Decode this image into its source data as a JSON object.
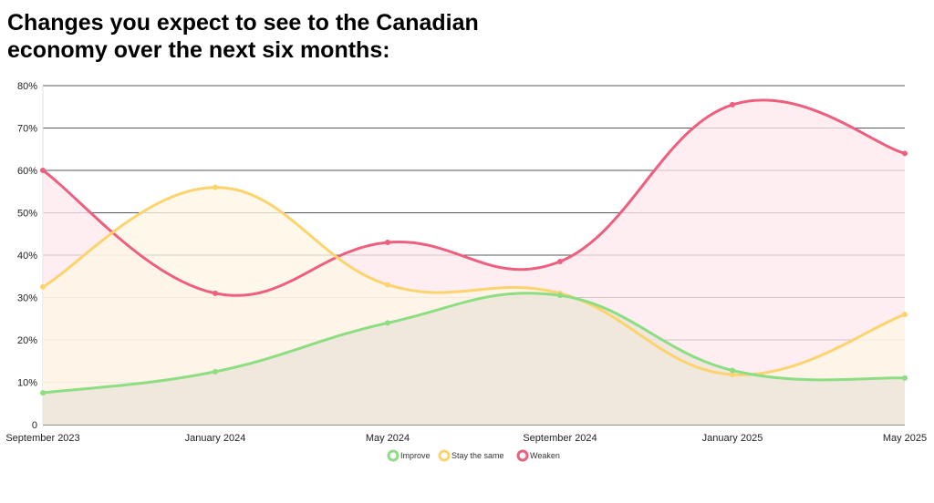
{
  "chart_data": {
    "type": "area",
    "title": "Changes you expect to see to the Canadian economy over the next six months:",
    "x": [
      "September 2023",
      "January 2024",
      "May 2024",
      "September 2024",
      "January 2025",
      "May 2025"
    ],
    "y_ticks": [
      "0",
      "10%",
      "20%",
      "30%",
      "40%",
      "50%",
      "60%",
      "70%",
      "80%"
    ],
    "ylim": [
      0,
      80
    ],
    "grid": true,
    "legend_position": "bottom",
    "series": [
      {
        "name": "Weaken",
        "values": [
          60,
          31,
          43,
          38.5,
          75.5,
          64
        ],
        "color": "#ee5f7e",
        "fill": "#fde8ee"
      },
      {
        "name": "Stay the same",
        "values": [
          32.5,
          56,
          33,
          31,
          11.8,
          26
        ],
        "color": "#fdd36e",
        "fill": "#fdf5e4"
      },
      {
        "name": "Improve",
        "values": [
          7.5,
          12.5,
          24,
          30.5,
          12.8,
          11
        ],
        "color": "#8ddd82",
        "fill": "#ebe4d8"
      }
    ],
    "legend": [
      "Improve",
      "Stay the same",
      "Weaken"
    ]
  }
}
